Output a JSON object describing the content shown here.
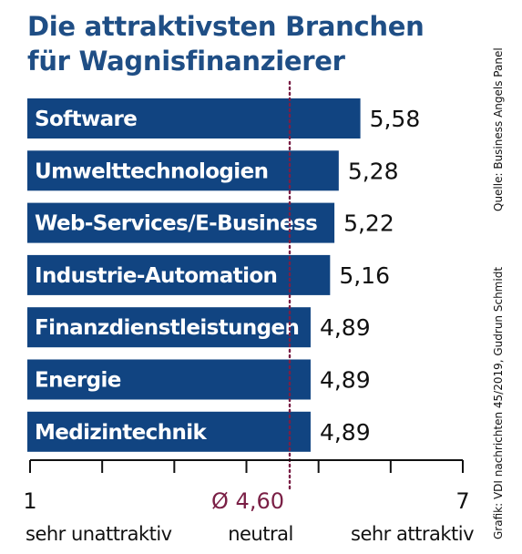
{
  "title": [
    "Die attraktivsten Branchen",
    "für Wagnisfinanzierer"
  ],
  "source": "Quelle: Business Angels Panel",
  "credit": "Grafik: VDI nachrichten 45/2019, Gudrun Schmidt",
  "colors": {
    "title": "#1f4e85",
    "bar": "#114481",
    "bar_text": "#ffffff",
    "reference": "#7a1f45",
    "text": "#111111"
  },
  "chart_data": {
    "type": "bar",
    "orientation": "horizontal",
    "categories": [
      "Software",
      "Umwelttechnologien",
      "Web-Services/E-Business",
      "Industrie-Automation",
      "Finanzdienstleistungen",
      "Energie",
      "Medizintechnik"
    ],
    "values": [
      5.58,
      5.28,
      5.22,
      5.16,
      4.89,
      4.89,
      4.89
    ],
    "value_labels": [
      "5,58",
      "5,28",
      "5,22",
      "5,16",
      "4,89",
      "4,89",
      "4,89"
    ],
    "xlim": [
      1,
      7
    ],
    "tick_labels": [
      "1",
      "7"
    ],
    "scale_labels": [
      "sehr unattraktiv",
      "neutral",
      "sehr attraktiv"
    ],
    "reference": {
      "value": 4.6,
      "label": "Ø 4,60"
    },
    "grid": false,
    "legend": "none"
  }
}
